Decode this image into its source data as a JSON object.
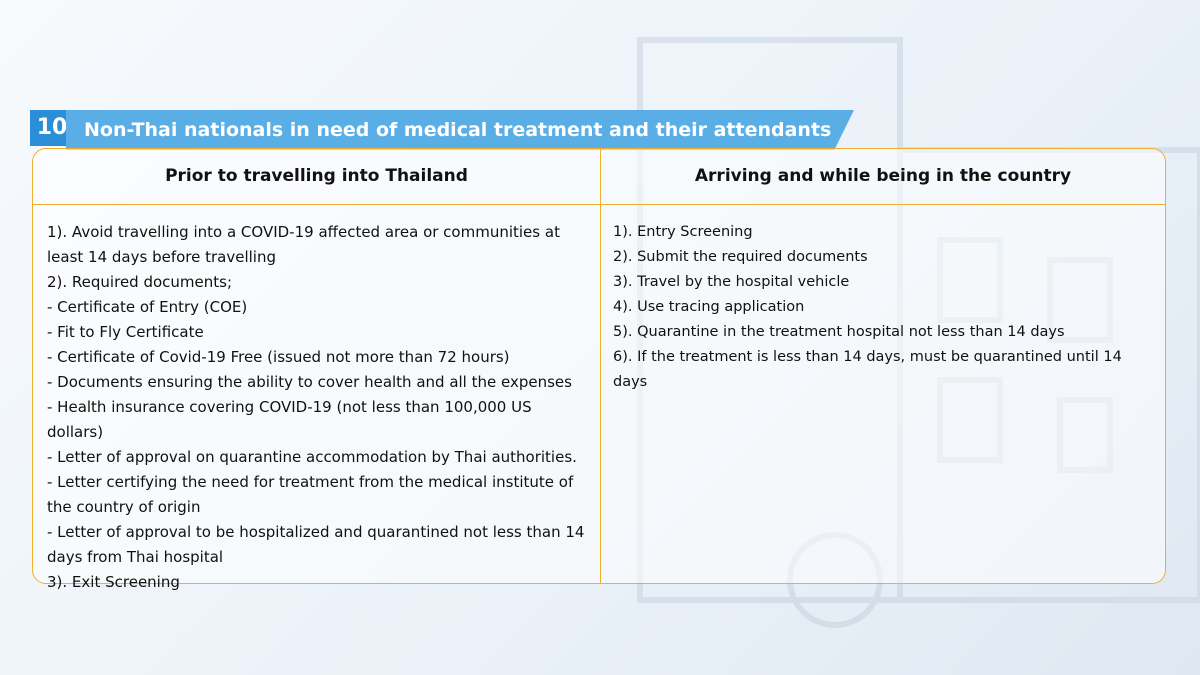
{
  "header": {
    "number": "10",
    "title": "Non-Thai nationals in need of medical treatment and their attendants"
  },
  "columns": [
    {
      "heading": "Prior to travelling into Thailand",
      "lines": [
        "1). Avoid travelling into a COVID-19 affected area or communities at least 14 days before travelling",
        "2). Required documents;",
        "- Certificate of Entry (COE)",
        "- Fit to Fly Certificate",
        "- Certificate of Covid-19 Free (issued not more than 72 hours)",
        "- Documents ensuring the ability to cover health and all the expenses",
        "- Health insurance covering COVID-19 (not less than 100,000 US dollars)",
        "- Letter of approval on quarantine accommodation  by Thai authorities.",
        "- Letter certifying the need for treatment from the medical institute of the country of origin",
        "- Letter of approval to be hospitalized and quarantined not less than 14 days from Thai hospital",
        "3). Exit Screening"
      ]
    },
    {
      "heading": "Arriving and while being in the country",
      "lines": [
        "1). Entry Screening",
        "2). Submit the required documents",
        "3). Travel by the hospital vehicle",
        "4). Use tracing application",
        "5). Quarantine in the treatment hospital not less than 14 days",
        "6).  If the treatment is less than 14 days, must be quarantined until 14 days"
      ]
    }
  ]
}
